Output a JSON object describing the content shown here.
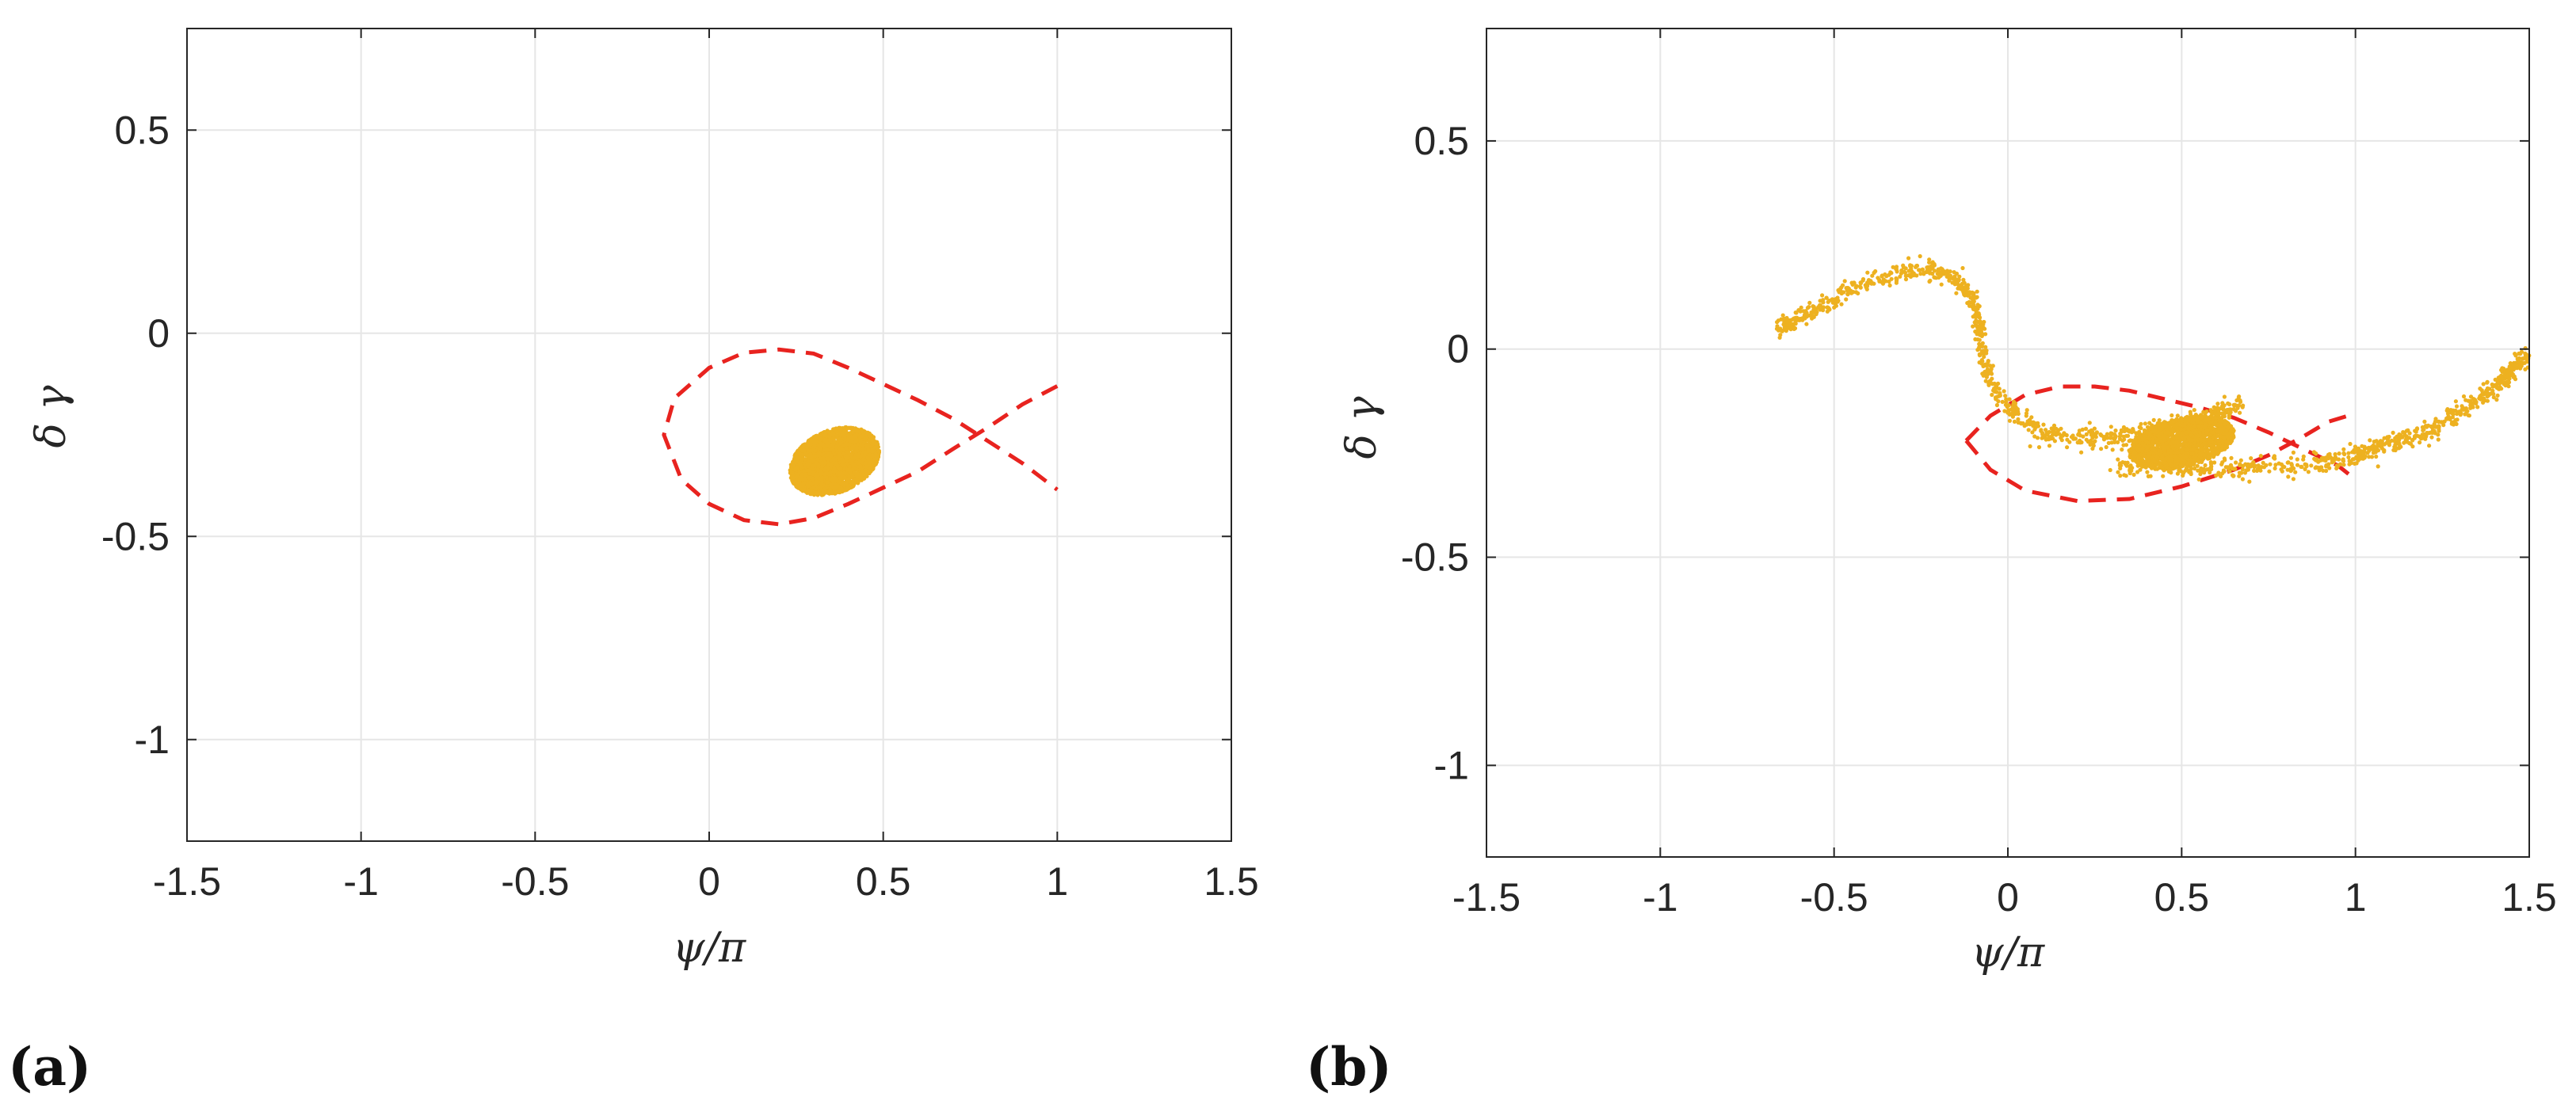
{
  "colors": {
    "scatter": "#EDB120",
    "separatrix": "#E8231F",
    "grid": "#E6E6E6",
    "axis": "#262626"
  },
  "chart_data": [
    {
      "type": "scatter",
      "panel_label": "(a)",
      "title": "",
      "xlabel": "ψ/π",
      "ylabel": "δ γ",
      "xlim": [
        -1.5,
        1.5
      ],
      "ylim": [
        -1.25,
        0.75
      ],
      "xticks": [
        -1.5,
        -1,
        -0.5,
        0,
        0.5,
        1,
        1.5
      ],
      "xtick_labels": [
        "-1.5",
        "-1",
        "-0.5",
        "0",
        "0.5",
        "1",
        "1.5"
      ],
      "yticks": [
        -1,
        -0.5,
        0,
        0.5
      ],
      "ytick_labels": [
        "-1",
        "-0.5",
        "0",
        "0.5"
      ],
      "grid": true,
      "separatrix": {
        "style": "dashed",
        "points": [
          [
            1.0,
            -0.13
          ],
          [
            0.9,
            -0.175
          ],
          [
            0.8,
            -0.232
          ],
          [
            0.7,
            -0.285
          ],
          [
            0.6,
            -0.34
          ],
          [
            0.5,
            -0.38
          ],
          [
            0.4,
            -0.42
          ],
          [
            0.3,
            -0.455
          ],
          [
            0.2,
            -0.47
          ],
          [
            0.1,
            -0.46
          ],
          [
            0.0,
            -0.42
          ],
          [
            -0.08,
            -0.36
          ],
          [
            -0.13,
            -0.25
          ],
          [
            -0.1,
            -0.16
          ],
          [
            0.0,
            -0.085
          ],
          [
            0.1,
            -0.048
          ],
          [
            0.2,
            -0.04
          ],
          [
            0.3,
            -0.05
          ],
          [
            0.4,
            -0.085
          ],
          [
            0.5,
            -0.125
          ],
          [
            0.6,
            -0.165
          ],
          [
            0.7,
            -0.21
          ],
          [
            0.8,
            -0.265
          ],
          [
            0.9,
            -0.32
          ],
          [
            1.0,
            -0.385
          ]
        ]
      },
      "particle_cloud": {
        "shape": "ellipse",
        "center": [
          0.36,
          -0.315
        ],
        "radius_x": 0.145,
        "radius_y": 0.085,
        "tilt_deg": 30,
        "count": 2600
      }
    },
    {
      "type": "scatter",
      "panel_label": "(b)",
      "title": "",
      "xlabel": "ψ/π",
      "ylabel": "δ γ",
      "xlim": [
        -1.5,
        1.5
      ],
      "ylim": [
        -1.22,
        0.77
      ],
      "xticks": [
        -1.5,
        -1,
        -0.5,
        0,
        0.5,
        1,
        1.5
      ],
      "xtick_labels": [
        "-1.5",
        "-1",
        "-0.5",
        "0",
        "0.5",
        "1",
        "1.5"
      ],
      "yticks": [
        -1,
        -0.5,
        0,
        0.5
      ],
      "ytick_labels": [
        "-1",
        "-0.5",
        "0",
        "0.5"
      ],
      "grid": true,
      "separatrix": {
        "style": "dashed",
        "points": [
          [
            -0.12,
            -0.22
          ],
          [
            -0.05,
            -0.16
          ],
          [
            0.05,
            -0.11
          ],
          [
            0.15,
            -0.09
          ],
          [
            0.25,
            -0.09
          ],
          [
            0.35,
            -0.1
          ],
          [
            0.45,
            -0.12
          ],
          [
            0.55,
            -0.14
          ],
          [
            0.65,
            -0.165
          ],
          [
            0.75,
            -0.2
          ],
          [
            0.85,
            -0.24
          ],
          [
            0.95,
            -0.28
          ],
          [
            0.98,
            -0.3
          ],
          null,
          [
            -0.12,
            -0.22
          ],
          [
            -0.05,
            -0.29
          ],
          [
            0.05,
            -0.34
          ],
          [
            0.2,
            -0.365
          ],
          [
            0.35,
            -0.36
          ],
          [
            0.5,
            -0.33
          ],
          [
            0.65,
            -0.29
          ],
          [
            0.75,
            -0.255
          ],
          [
            0.85,
            -0.21
          ],
          [
            0.92,
            -0.175
          ],
          [
            0.98,
            -0.16
          ]
        ]
      },
      "particle_track": {
        "points": [
          [
            -0.66,
            0.05
          ],
          [
            -0.6,
            0.075
          ],
          [
            -0.5,
            0.12
          ],
          [
            -0.4,
            0.16
          ],
          [
            -0.3,
            0.185
          ],
          [
            -0.22,
            0.19
          ],
          [
            -0.15,
            0.17
          ],
          [
            -0.1,
            0.12
          ],
          [
            -0.08,
            0.04
          ],
          [
            -0.06,
            -0.05
          ],
          [
            -0.02,
            -0.12
          ],
          [
            0.04,
            -0.17
          ],
          [
            0.1,
            -0.2
          ],
          [
            0.2,
            -0.215
          ],
          [
            0.3,
            -0.215
          ],
          [
            0.4,
            -0.2
          ],
          [
            0.5,
            -0.18
          ],
          [
            0.6,
            -0.155
          ],
          [
            0.68,
            -0.13
          ]
        ],
        "count": 900,
        "spread": 0.012
      },
      "lower_branch": {
        "points": [
          [
            0.3,
            -0.28
          ],
          [
            0.5,
            -0.29
          ],
          [
            0.7,
            -0.285
          ],
          [
            0.9,
            -0.275
          ],
          [
            1.0,
            -0.255
          ],
          [
            1.1,
            -0.23
          ],
          [
            1.2,
            -0.2
          ],
          [
            1.3,
            -0.15
          ],
          [
            1.4,
            -0.09
          ],
          [
            1.45,
            -0.05
          ],
          [
            1.5,
            -0.01
          ]
        ],
        "count": 700,
        "spread": 0.012
      },
      "particle_cloud": {
        "shape": "ellipse",
        "center": [
          0.5,
          -0.225
        ],
        "radius_x": 0.16,
        "radius_y": 0.06,
        "tilt_deg": 20,
        "count": 1800
      }
    }
  ]
}
